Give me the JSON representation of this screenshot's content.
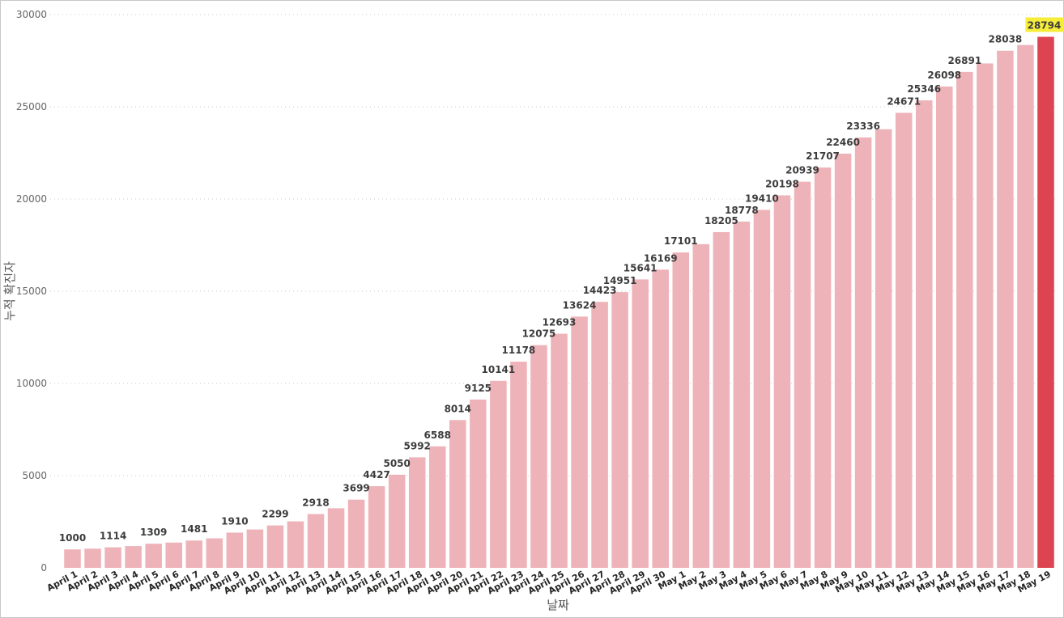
{
  "chart_data": {
    "type": "bar",
    "xlabel": "날짜",
    "ylabel": "누적 확진자",
    "ylim": [
      0,
      30000
    ],
    "yticks": [
      0,
      5000,
      10000,
      15000,
      20000,
      25000,
      30000
    ],
    "grid": true,
    "categories": [
      "April 1",
      "April 2",
      "April 3",
      "April 4",
      "April 5",
      "April 6",
      "April 7",
      "April 8",
      "April 9",
      "April 10",
      "April 11",
      "April 12",
      "April 13",
      "April 14",
      "April 15",
      "April 16",
      "April 17",
      "April 18",
      "April 19",
      "April 20",
      "April 21",
      "April 22",
      "April 23",
      "April 24",
      "April 25",
      "April 26",
      "April 27",
      "April 28",
      "April 29",
      "April 30",
      "May 1",
      "May 2",
      "May 3",
      "May 4",
      "May 5",
      "May 6",
      "May 7",
      "May 8",
      "May 9",
      "May 10",
      "May 11",
      "May 12",
      "May 13",
      "May 14",
      "May 15",
      "May 16",
      "May 17",
      "May 18",
      "May 19"
    ],
    "values": [
      1000,
      1040,
      1114,
      1180,
      1309,
      1370,
      1481,
      1600,
      1910,
      2080,
      2299,
      2520,
      2918,
      3230,
      3699,
      4427,
      5050,
      5992,
      6588,
      8014,
      9125,
      10141,
      11178,
      12075,
      12693,
      13624,
      14423,
      14951,
      15641,
      16169,
      17101,
      17550,
      18205,
      18778,
      19410,
      20198,
      20939,
      21707,
      22460,
      23336,
      23780,
      24671,
      25346,
      26098,
      26891,
      27350,
      28038,
      28350,
      28794
    ],
    "labels": [
      "1000",
      "",
      "1114",
      "",
      "1309",
      "",
      "1481",
      "",
      "1910",
      "",
      "2299",
      "",
      "2918",
      "",
      "3699",
      "4427",
      "5050",
      "5992",
      "6588",
      "8014",
      "9125",
      "10141",
      "11178",
      "12075",
      "12693",
      "13624",
      "14423",
      "14951",
      "15641",
      "16169",
      "17101",
      "",
      "18205",
      "18778",
      "19410",
      "20198",
      "20939",
      "21707",
      "22460",
      "23336",
      "",
      "24671",
      "25346",
      "26098",
      "26891",
      "",
      "28038",
      "",
      "28794"
    ],
    "colors": {
      "bar": "#eeb3b8",
      "highlight_bar": "#dc4451",
      "highlight_label_bg": "#f6ed3b"
    },
    "highlight_index": 48
  }
}
